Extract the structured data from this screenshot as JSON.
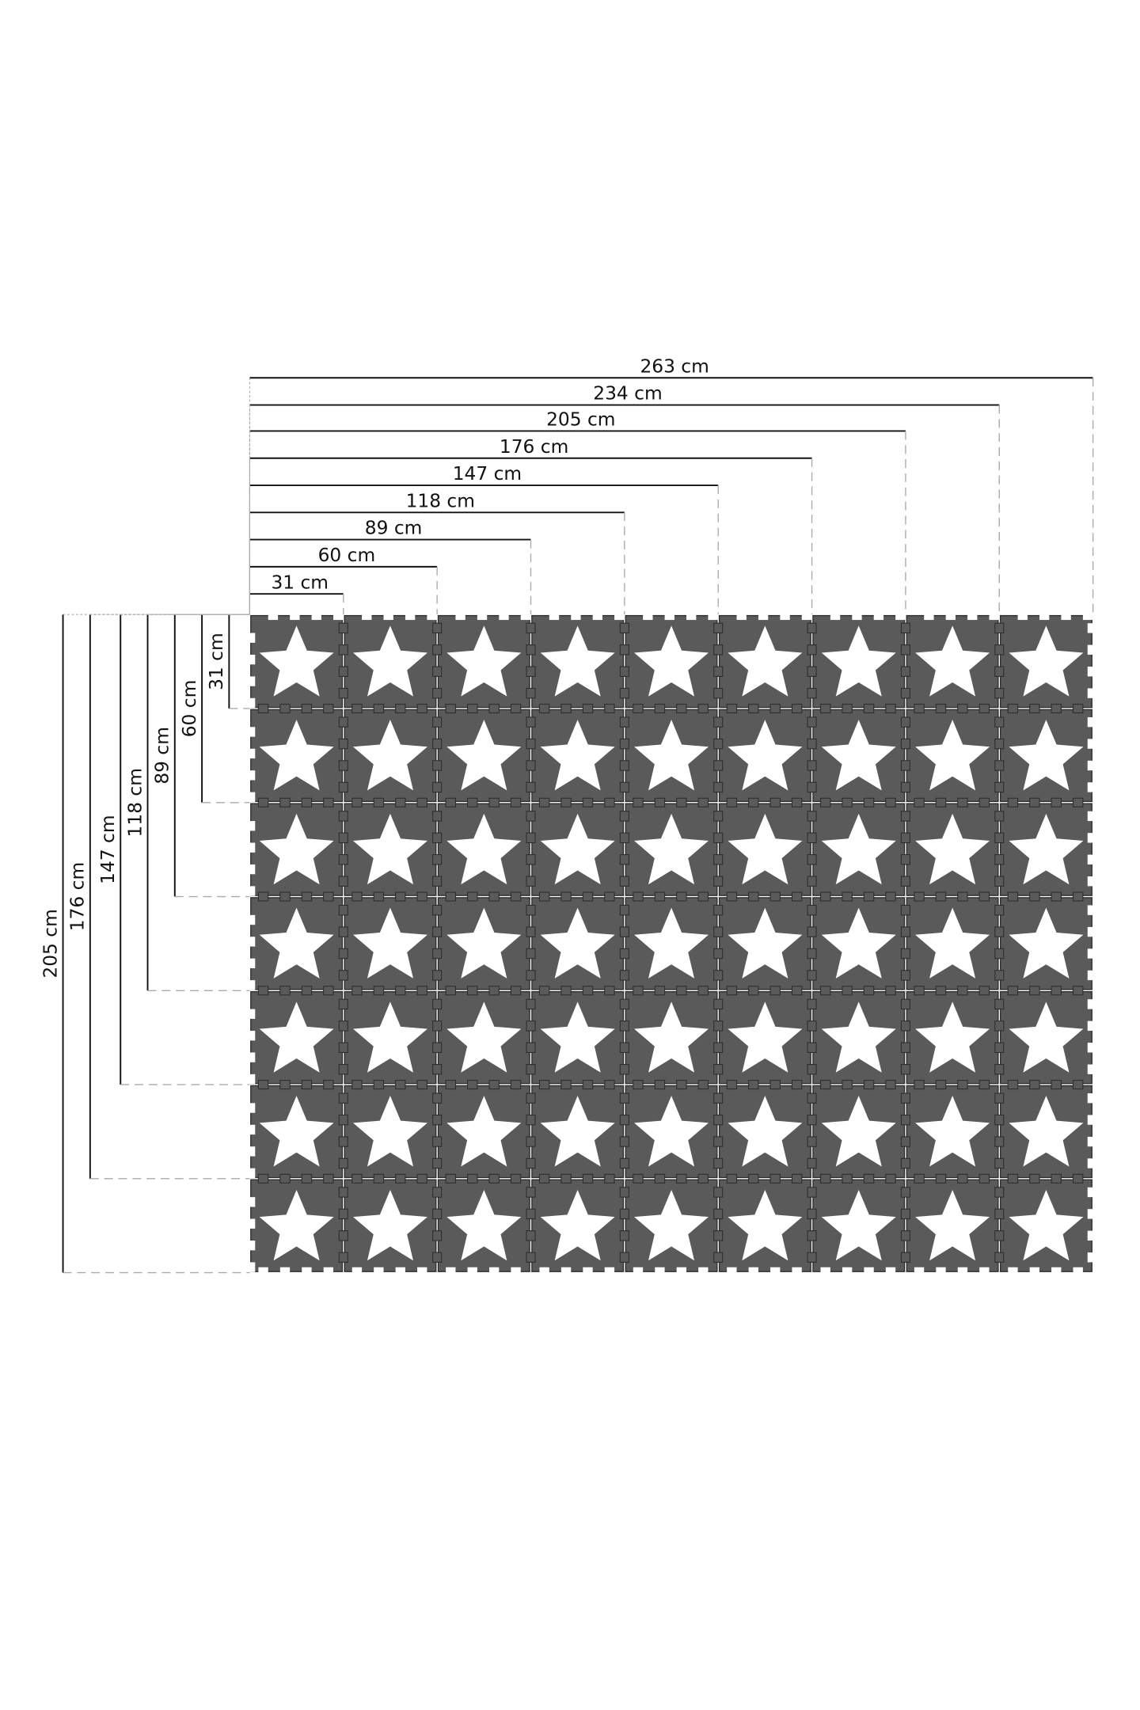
{
  "diagram": {
    "grid": {
      "columns": 9,
      "rows": 7,
      "tile_cm": 29
    },
    "width_labels": [
      "31 cm",
      "60 cm",
      "89 cm",
      "118 cm",
      "147 cm",
      "176 cm",
      "205 cm",
      "234 cm",
      "263 cm"
    ],
    "height_labels": [
      "31 cm",
      "60 cm",
      "89 cm",
      "118 cm",
      "147 cm",
      "176 cm",
      "205 cm"
    ],
    "colors": {
      "tile": "#5a5a5a",
      "star": "#ffffff",
      "seam": "#2e2e2e",
      "line": "#111111",
      "dash": "#aaaaaa"
    },
    "icon": "star-icon"
  }
}
